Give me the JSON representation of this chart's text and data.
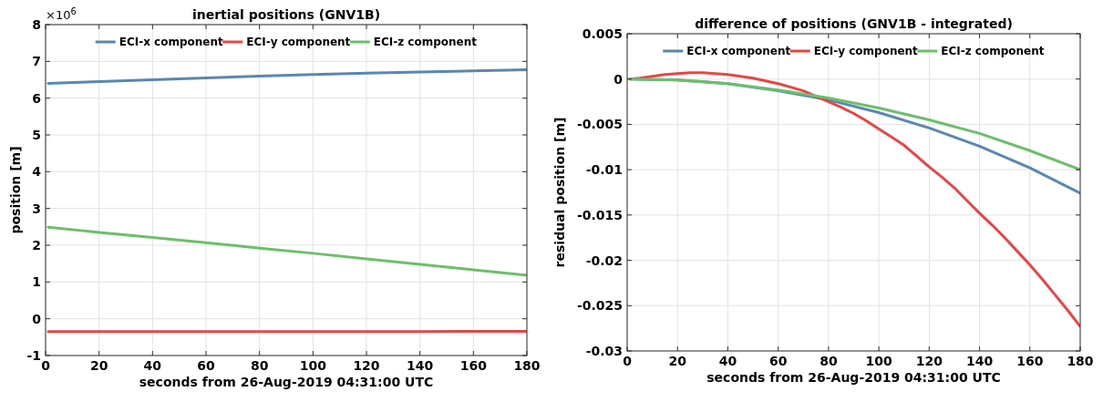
{
  "chart_data": [
    {
      "type": "line",
      "title": "inertial positions (GNV1B)",
      "xlabel": "seconds from 26-Aug-2019 04:31:00 UTC",
      "ylabel": "position [m]",
      "annotations": [
        "×10$^{6}$"
      ],
      "xlim": [
        0,
        180
      ],
      "xticks": [
        0,
        20,
        40,
        60,
        80,
        100,
        120,
        140,
        160,
        180
      ],
      "ylim": [
        -1,
        8
      ],
      "yticks": [
        -1,
        0,
        1,
        2,
        3,
        4,
        5,
        6,
        7,
        8
      ],
      "grid": true,
      "legend": "top",
      "x": [
        1,
        20,
        40,
        60,
        80,
        100,
        120,
        140,
        160,
        180
      ],
      "series": [
        {
          "name": "ECI-x component",
          "color": "#5a87b0",
          "values": [
            6.4,
            6.45,
            6.5,
            6.55,
            6.6,
            6.64,
            6.68,
            6.71,
            6.74,
            6.77
          ]
        },
        {
          "name": "ECI-y component",
          "color": "#e84545",
          "values": [
            -0.35,
            -0.35,
            -0.35,
            -0.35,
            -0.35,
            -0.35,
            -0.35,
            -0.35,
            -0.34,
            -0.34
          ]
        },
        {
          "name": "ECI-z component",
          "color": "#6cbf6a",
          "values": [
            2.49,
            2.35,
            2.21,
            2.07,
            1.92,
            1.78,
            1.63,
            1.48,
            1.33,
            1.18
          ]
        }
      ]
    },
    {
      "type": "line",
      "title": "difference of positions (GNV1B - integrated)",
      "xlabel": "seconds from 26-Aug-2019 04:31:00 UTC",
      "ylabel": "residual position [m]",
      "xlim": [
        0,
        180
      ],
      "xticks": [
        0,
        20,
        40,
        60,
        80,
        100,
        120,
        140,
        160,
        180
      ],
      "ylim": [
        -0.03,
        0.005
      ],
      "yticks": [
        -0.03,
        -0.025,
        -0.02,
        -0.015,
        -0.01,
        -0.005,
        0,
        0.005
      ],
      "grid": true,
      "legend": "top",
      "x": [
        1,
        20,
        40,
        60,
        80,
        100,
        120,
        140,
        160,
        180
      ],
      "series": [
        {
          "name": "ECI-x component",
          "color": "#5a87b0",
          "values": [
            0,
            -0.0001,
            -0.0005,
            -0.0013,
            -0.0023,
            -0.0037,
            -0.0054,
            -0.0074,
            -0.0098,
            -0.0126
          ]
        },
        {
          "name": "ECI-y component",
          "color": "#e84545",
          "x": [
            1,
            5,
            10,
            15,
            20,
            25,
            30,
            35,
            40,
            45,
            50,
            55,
            60,
            65,
            70,
            75,
            80,
            85,
            90,
            95,
            100,
            105,
            110,
            115,
            120,
            125,
            130,
            135,
            140,
            145,
            150,
            155,
            160,
            165,
            170,
            175,
            180
          ],
          "values": [
            0,
            0.0001,
            0.0003,
            0.0005,
            0.0006,
            0.0007,
            0.0007,
            0.0006,
            0.0005,
            0.0003,
            0.0001,
            -0.0002,
            -0.0005,
            -0.0009,
            -0.0013,
            -0.0019,
            -0.0025,
            -0.0031,
            -0.0038,
            -0.0046,
            -0.0055,
            -0.0064,
            -0.0073,
            -0.0085,
            -0.0097,
            -0.0108,
            -0.012,
            -0.0134,
            -0.0148,
            -0.0161,
            -0.0175,
            -0.019,
            -0.0205,
            -0.0221,
            -0.0238,
            -0.0255,
            -0.0273
          ]
        },
        {
          "name": "ECI-z component",
          "color": "#6cbf6a",
          "values": [
            0,
            -0.0001,
            -0.0005,
            -0.0012,
            -0.0021,
            -0.0032,
            -0.0045,
            -0.006,
            -0.0079,
            -0.01
          ]
        }
      ]
    }
  ]
}
